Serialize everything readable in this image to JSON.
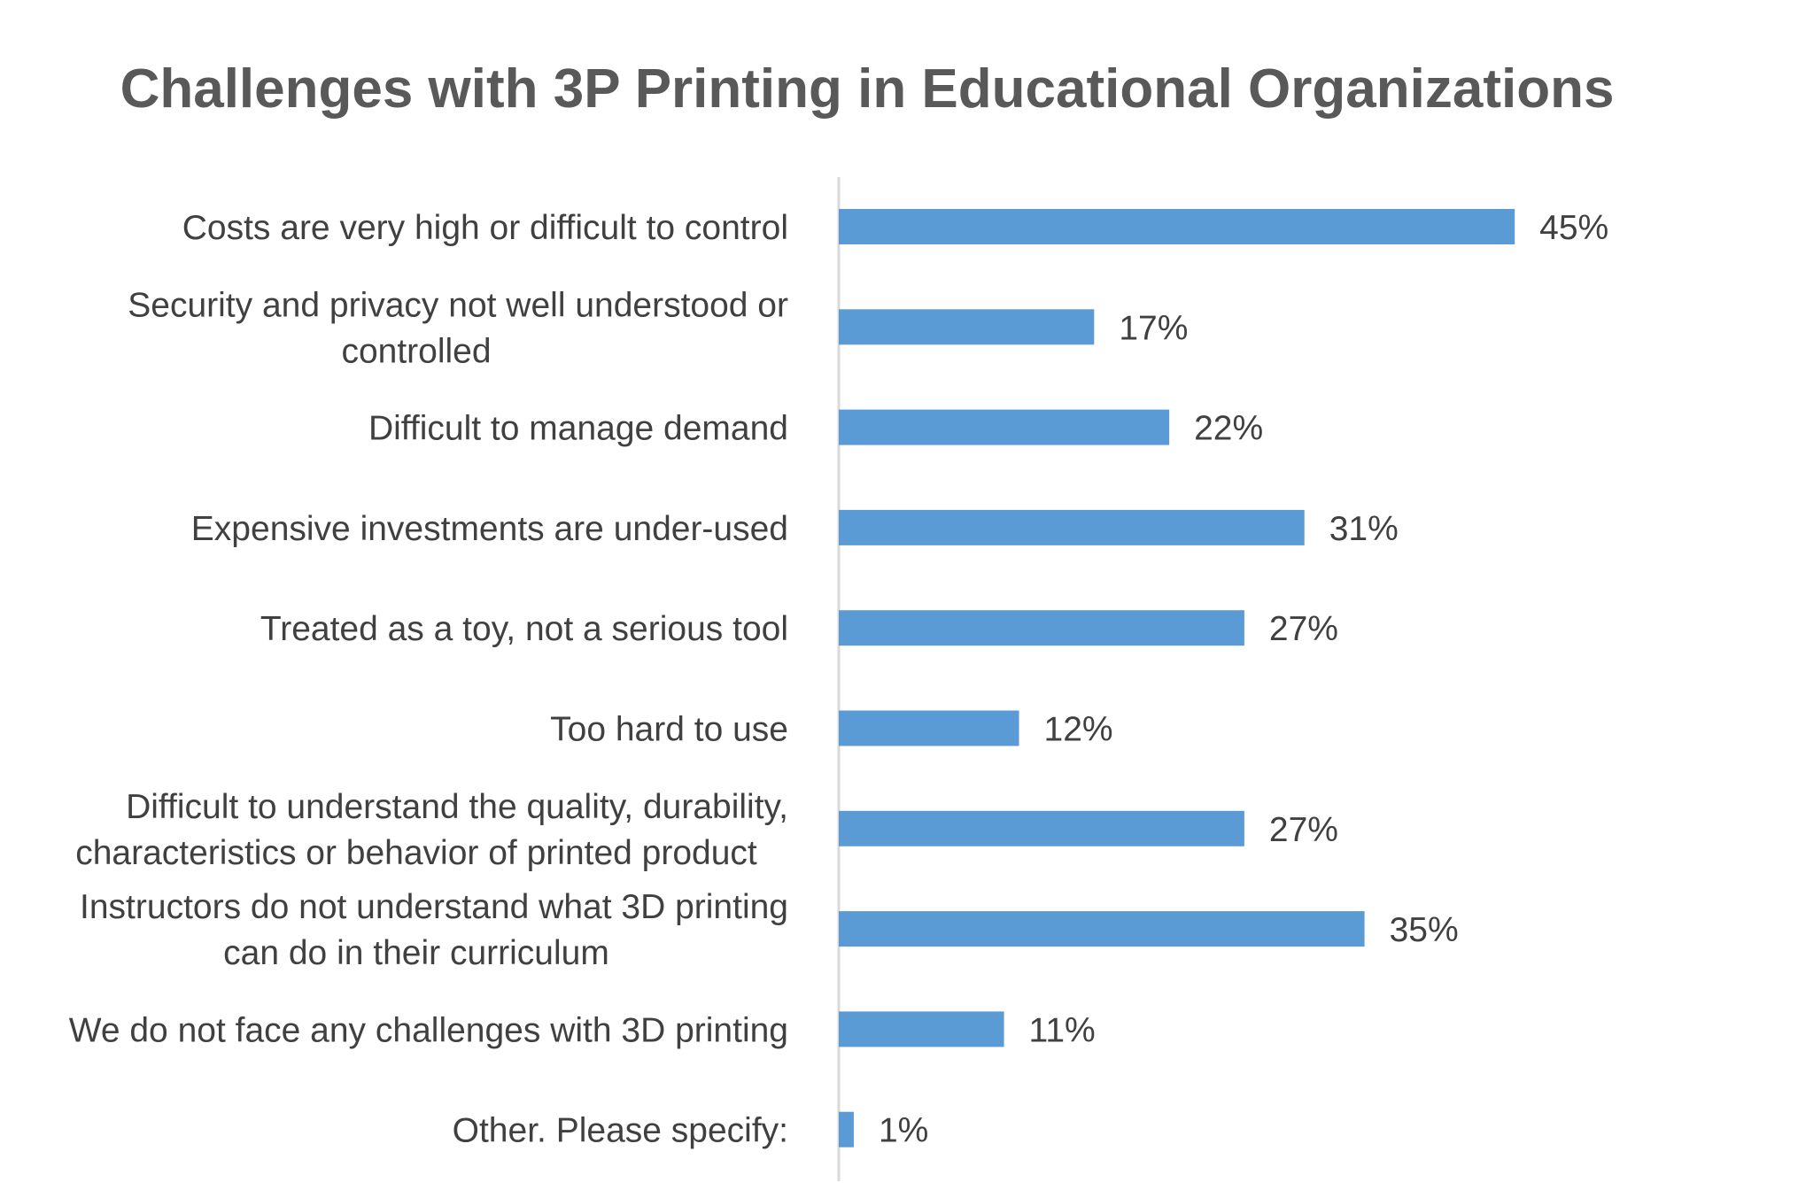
{
  "chart_data": {
    "type": "bar",
    "orientation": "horizontal",
    "title": "Challenges with 3P Printing in Educational Organizations",
    "categories": [
      [
        "Costs are very high or difficult to control"
      ],
      [
        "Security and privacy not well understood or",
        "controlled"
      ],
      [
        "Difficult to manage demand"
      ],
      [
        "Expensive investments are under-used"
      ],
      [
        "Treated as a toy, not a serious tool"
      ],
      [
        "Too hard to use"
      ],
      [
        "Difficult to understand the quality, durability,",
        "characteristics or behavior of printed product"
      ],
      [
        "Instructors do not understand what 3D printing",
        "can do in their curriculum"
      ],
      [
        "We do not face any challenges with 3D printing"
      ],
      [
        "Other.  Please specify:"
      ]
    ],
    "values": [
      45,
      17,
      22,
      31,
      27,
      12,
      27,
      35,
      11,
      1
    ],
    "value_labels": [
      "45%",
      "17%",
      "22%",
      "31%",
      "27%",
      "12%",
      "27%",
      "35%",
      "11%",
      "1%"
    ],
    "xlim": [
      0,
      50
    ],
    "bar_color": "#5B9BD5",
    "axis_color": "#D9D9D9",
    "grid": false,
    "legend": "none"
  }
}
